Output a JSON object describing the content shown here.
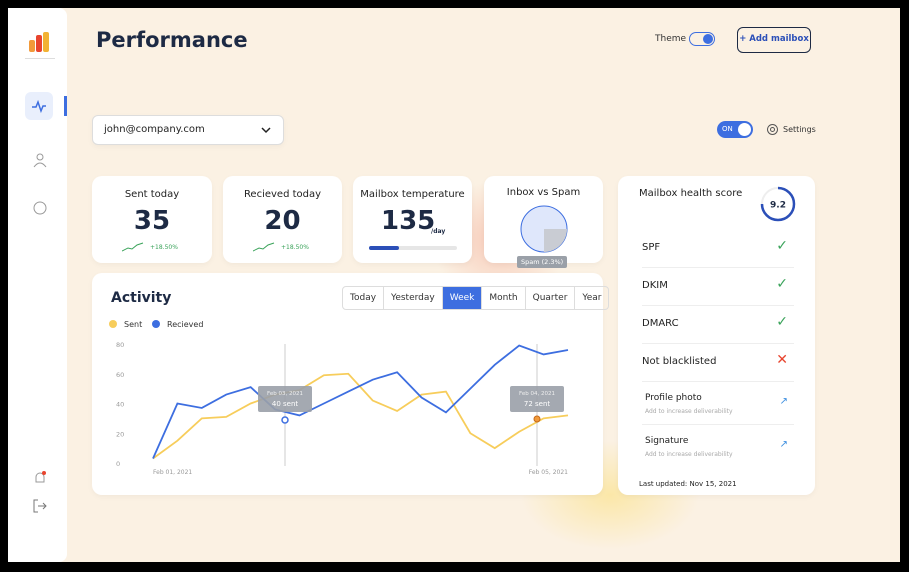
{
  "header": {
    "title": "Performance",
    "theme_label": "Theme",
    "add_button": "+ Add mailbox"
  },
  "mailbox_select": "john@company.com",
  "toggle": "ON",
  "settings": "Settings",
  "stats": [
    {
      "label": "Sent today",
      "value": "35",
      "change": "+18.50%"
    },
    {
      "label": "Recieved today",
      "value": "20",
      "change": "+18.50%"
    }
  ],
  "temperature": {
    "label": "Mailbox temperature",
    "value": "135",
    "unit": "/day"
  },
  "inbox_spam": {
    "label": "Inbox vs Spam",
    "tooltip": "Spam (2.3%)"
  },
  "health": {
    "title": "Mailbox health score",
    "score": "9.2",
    "checks": [
      {
        "label": "SPF",
        "status": "ok"
      },
      {
        "label": "DKIM",
        "status": "ok"
      },
      {
        "label": "DMARC",
        "status": "ok"
      },
      {
        "label": "Not blacklisted",
        "status": "fail"
      }
    ],
    "actions": [
      {
        "label": "Profile photo",
        "hint": "Add to increase deliverability"
      },
      {
        "label": "Signature",
        "hint": "Add to increase deliverability"
      }
    ],
    "updated": "Last updated: Nov 15, 2021"
  },
  "activity_tabs": [
    "Today",
    "Yesterday",
    "Week",
    "Month",
    "Quarter",
    "Year"
  ],
  "active_tab": "Week",
  "chart_data": {
    "type": "line",
    "title": "Activity",
    "categories": [
      "Feb 01, 2021",
      null,
      null,
      null,
      null,
      null,
      null,
      null,
      null,
      null,
      null,
      null,
      null,
      null,
      null,
      null,
      null,
      "Feb 05, 2021"
    ],
    "series": [
      {
        "name": "Sent",
        "color": "#f7cd5b",
        "values": [
          3,
          15,
          30,
          31,
          40,
          46,
          49,
          59,
          60,
          42,
          35,
          46,
          48,
          20,
          10,
          21,
          30,
          32
        ]
      },
      {
        "name": "Recieved",
        "color": "#3d6ee0",
        "values": [
          3,
          40,
          37,
          46,
          51,
          36,
          32,
          40,
          48,
          56,
          61,
          44,
          34,
          50,
          66,
          79,
          73,
          76
        ]
      }
    ],
    "ylim": [
      0,
      80
    ],
    "yticks": [
      0,
      20,
      40,
      60,
      80
    ],
    "annotations": [
      {
        "date": "Feb 03, 2021",
        "text": "40 sent"
      },
      {
        "date": "Feb 04, 2021",
        "text": "72 sent"
      }
    ]
  }
}
